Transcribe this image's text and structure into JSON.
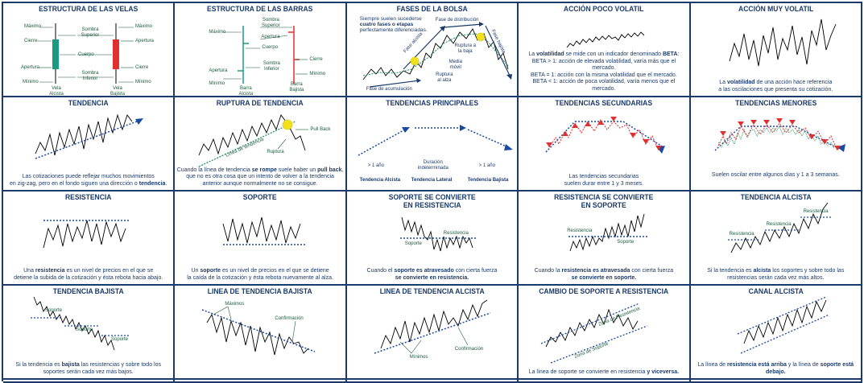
{
  "cells": [
    {
      "title": "ESTRUCTURA DE LAS VELAS",
      "labels": {
        "max_l": "Máximo",
        "max_r": "Máximo",
        "cierre_l": "Cierre",
        "apert_r": "Apertura",
        "cuerpo": "Cuerpo",
        "sombra_sup": "Sombra Superior",
        "apert_l": "Apertura",
        "cierre_r": "Cierre",
        "sombra_inf": "Sombra Inferior",
        "min_l": "Mínimo",
        "min_r": "Mínimo",
        "vela_alc": "Vela Alcista",
        "vela_baj": "Vela Bajista"
      }
    },
    {
      "title": "ESTRUCTURA DE LAS BARRAS",
      "labels": {
        "maximo": "Máximo",
        "sombra_sup": "Sombra Superior",
        "apertura": "Apertura",
        "cuerpo": "Cuerpo",
        "cierre": "Cierre",
        "apertura_l": "Apertura",
        "sombra_inf": "Sombra Inferior",
        "cierre_r": "Cierre",
        "minimo_l": "Mínimo",
        "minimo_r": "Mínimo",
        "barra_alc": "Barra Alcista",
        "barra_baj": "Barra Bajista",
        "maximo_r": "Máximo"
      }
    },
    {
      "title": "FASES DE LA BOLSA",
      "intro": "Siempre suelen sucederse",
      "intro_b": "cuatro fases o etapas",
      "intro2": "perfectamente diferenciadas.",
      "labels": {
        "distribucion": "Fase de distribución",
        "alcista": "Fase alcista",
        "bajista": "Fase bajista",
        "ruptura_baja": "Ruptura a la baja",
        "media": "Media móvil",
        "ruptura_alza": "Ruptura al alza",
        "acumulacion": "Fase de acumulación"
      }
    },
    {
      "title": "ACCIÓN POCO VOLATIL",
      "cap1": "La",
      "cap1b": "volatilidad",
      "cap1c": "se mide con un indicador denominado",
      "cap1d": "BETA",
      "cap2": "BETA > 1: acción de elevada volatilidad, varía más que el mercado.",
      "cap3": "BETA = 1: acción con la misma volatilidad que el mercado.",
      "cap4": "BETA < 1: acción de poca volatilidad, varía menos que el mercado."
    },
    {
      "title": "ACCIÓN MUY VOLATIL",
      "cap1": "La",
      "cap1b": "volatilidad",
      "cap1c": "de una acción hace referencia",
      "cap2": "a las oscilaciones que presenta su cotización."
    },
    {
      "title": "TENDENCIA",
      "cap1": "Las cotizaciones puede reflejar muchos movimientos",
      "cap2": "en zig-zag, pero en el fondo siguen una dirección o",
      "cap2b": "tendencia"
    },
    {
      "title": "RUPTURA DE TENDENCIA",
      "labels": {
        "pullback": "Pull Back",
        "linea": "Línea de tendencia",
        "ruptura": "Ruptura"
      },
      "cap1": "Cuando la línea de tendencia",
      "cap1b": "se rompe",
      "cap1c": "suele haber un",
      "cap1d": "pull back",
      "cap2": "que no es otra cosa que un intento de volver a la tendencia",
      "cap3": "anterior aunque normalmente no se consigue."
    },
    {
      "title": "TENDENCIAS PRINCIPALES",
      "labels": {
        "y1": "> 1 año",
        "dur": "Duración indeterminada",
        "y2": "> 1 año",
        "alc": "Tendencia Alcista",
        "lat": "Tendencia Lateral",
        "baj": "Tendencia Bajista"
      }
    },
    {
      "title": "TENDENCIAS SECUNDARIAS",
      "cap1": "Las tendencias secundarias",
      "cap2": "suelen durar entre 1 y 3 meses."
    },
    {
      "title": "TENDENCIAS MENORES",
      "cap1": "Suelen oscilar entre algunos días y 1 a 3 semanas."
    },
    {
      "title": "RESISTENCIA",
      "cap1": "Una",
      "cap1b": "resistencia",
      "cap1c": "es un nivel de precios en el que se",
      "cap2": "detiene la subida de la cotización y ésta rebota hacia abajo."
    },
    {
      "title": "SOPORTE",
      "cap1": "Un",
      "cap1b": "soporte",
      "cap1c": "es un nivel de precios en el que se detiene",
      "cap2": "la caída de la cotización y ésta rebota nuevamente al alza."
    },
    {
      "title": "SOPORTE SE CONVIERTE",
      "title2": "EN RESISTENCIA",
      "labels": {
        "res": "Resistencia",
        "sop": "Soporte"
      },
      "cap1": "Cuando el",
      "cap1b": "soporte es atravesado",
      "cap1c": "con cierta fuerza",
      "cap2b": "se convierte en resistencia."
    },
    {
      "title": "RESISTENCIA SE CONVIERTE",
      "title2": "EN SOPORTE",
      "labels": {
        "res": "Resistencia",
        "sop": "Soporte"
      },
      "cap1": "Cuando la",
      "cap1b": "resistencia es atravesada",
      "cap1c": "con cierta fuerza",
      "cap2b": "se convierte en soporte."
    },
    {
      "title": "TENDENCIA ALCISTA",
      "labels": {
        "r1": "Resistencia",
        "r2": "Resistencia",
        "r3": "Resistencia"
      },
      "cap1": "Si la tendencia es",
      "cap1b": "alcista",
      "cap1c": "los soportes y sobre todo las",
      "cap2": "resistencias serán cada vez más altos."
    },
    {
      "title": "TENDENCIA BAJISTA",
      "labels": {
        "s1": "Soporte",
        "s2": "Soporte",
        "s3": "Soporte"
      },
      "cap1": "Si la tendencia es",
      "cap1b": "bajista",
      "cap1c": "las resistencias y sobre todo los",
      "cap2": "soportes serán cada vez más bajos."
    },
    {
      "title": "LINEA DE TENDENCIA BAJISTA",
      "labels": {
        "max": "Máximos",
        "conf": "Confirmación"
      }
    },
    {
      "title": "LINEA DE TENDENCIA ALCISTA",
      "labels": {
        "min": "Mínimos",
        "conf": "Confirmación"
      }
    },
    {
      "title": "CAMBIO DE SOPORTE A RESISTENCIA",
      "labels": {
        "zres": "Zona de Resistencia",
        "zsop": "Zona de Soporte"
      },
      "cap1": "La línea de soporte se convierte en resistencia",
      "cap1b": "y viceversa."
    },
    {
      "title": "CANAL ALCISTA",
      "cap1": "La línea de",
      "cap1b": "resistencia está arriba",
      "cap1c": "y la línea de",
      "cap1d": "soporte está debajo."
    }
  ],
  "colors": {
    "navy": "#1a3a6b",
    "green": "#1a8a5a",
    "red": "#e03030",
    "yellow": "#f2e020",
    "blue_dots": "#1a4aa0"
  }
}
